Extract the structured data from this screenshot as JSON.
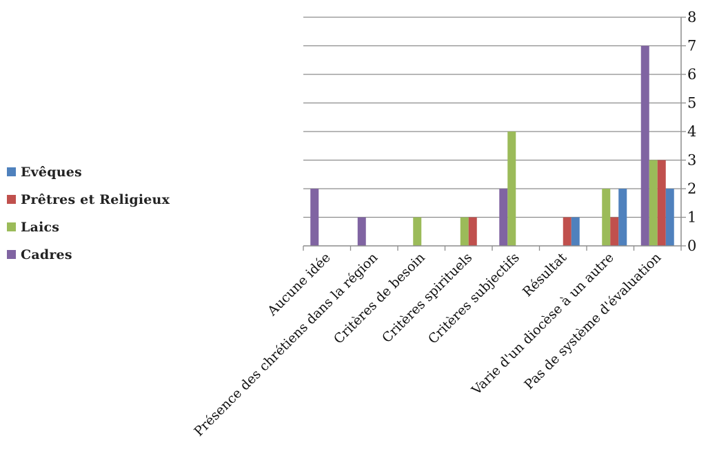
{
  "chart_data": {
    "type": "bar",
    "categories": [
      "Aucune idée",
      "Présence des chrétiens dans la région",
      "Critères de besoin",
      "Critères spirituels",
      "Critères subjectifs",
      "Résultat",
      "Varie d'un diocèse à un autre",
      "Pas de système d'évaluation"
    ],
    "series": [
      {
        "name": "Cadres",
        "color": "#8064A2",
        "values": [
          2,
          1,
          0,
          0,
          2,
          0,
          0,
          7
        ]
      },
      {
        "name": "Laics",
        "color": "#9BBB59",
        "values": [
          0,
          0,
          1,
          1,
          4,
          0,
          2,
          3
        ]
      },
      {
        "name": "Prêtres et Religieux",
        "color": "#C0504D",
        "values": [
          0,
          0,
          0,
          1,
          0,
          1,
          1,
          3
        ]
      },
      {
        "name": "Evêques",
        "color": "#4F81BD",
        "values": [
          0,
          0,
          0,
          0,
          0,
          1,
          2,
          2
        ]
      }
    ],
    "yticks": [
      "0",
      "1",
      "2",
      "3",
      "4",
      "5",
      "6",
      "7",
      "8"
    ],
    "ylim": [
      0,
      8
    ],
    "y_axis_side": "right",
    "grid": true,
    "legend_position": "left",
    "legend_order": [
      "Evêques",
      "Prêtres et Religieux",
      "Laics",
      "Cadres"
    ],
    "title": "",
    "xlabel": "",
    "ylabel": ""
  }
}
